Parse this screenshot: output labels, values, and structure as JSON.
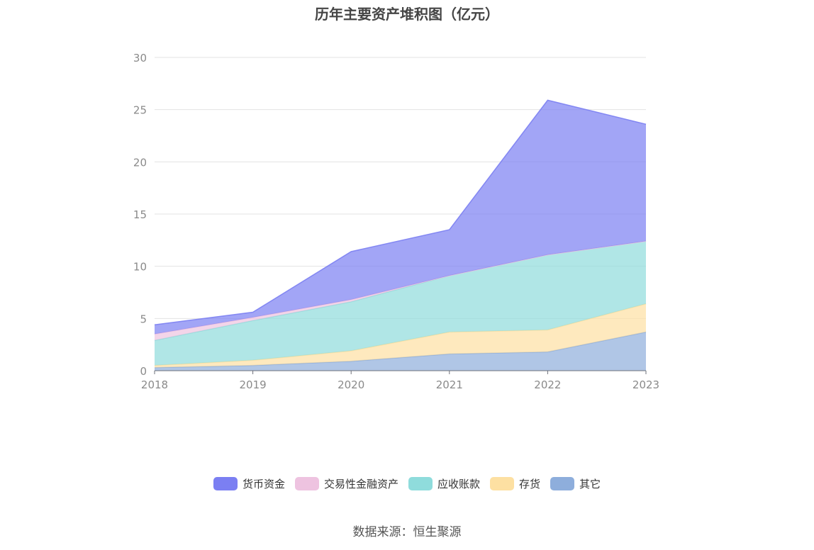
{
  "chart_data": {
    "type": "area",
    "stacked": true,
    "title": "历年主要资产堆积图（亿元）",
    "x": [
      "2018",
      "2019",
      "2020",
      "2021",
      "2022",
      "2023"
    ],
    "ylim": [
      0,
      30
    ],
    "yticks": [
      "0",
      "5",
      "10",
      "15",
      "20",
      "25",
      "30"
    ],
    "grid": true,
    "legend_position": "bottom",
    "series": [
      {
        "name": "其它",
        "color": "#8eaedc",
        "values": [
          0.3,
          0.5,
          0.9,
          1.6,
          1.8,
          3.7
        ]
      },
      {
        "name": "存货",
        "color": "#fde0a2",
        "values": [
          0.2,
          0.5,
          1.0,
          2.1,
          2.1,
          2.7
        ]
      },
      {
        "name": "应收账款",
        "color": "#8fdcdc",
        "values": [
          2.4,
          3.8,
          4.7,
          5.4,
          7.2,
          6.0
        ]
      },
      {
        "name": "交易性金融资产",
        "color": "#eec3e0",
        "values": [
          0.6,
          0.3,
          0.2,
          0.0,
          0.0,
          0.0
        ]
      },
      {
        "name": "货币资金",
        "color": "#7b7ff2",
        "values": [
          0.9,
          0.5,
          4.6,
          4.4,
          14.8,
          11.2
        ]
      }
    ],
    "legend_order": [
      "货币资金",
      "交易性金融资产",
      "应收账款",
      "存货",
      "其它"
    ]
  },
  "footer": {
    "source": "数据来源：恒生聚源"
  }
}
